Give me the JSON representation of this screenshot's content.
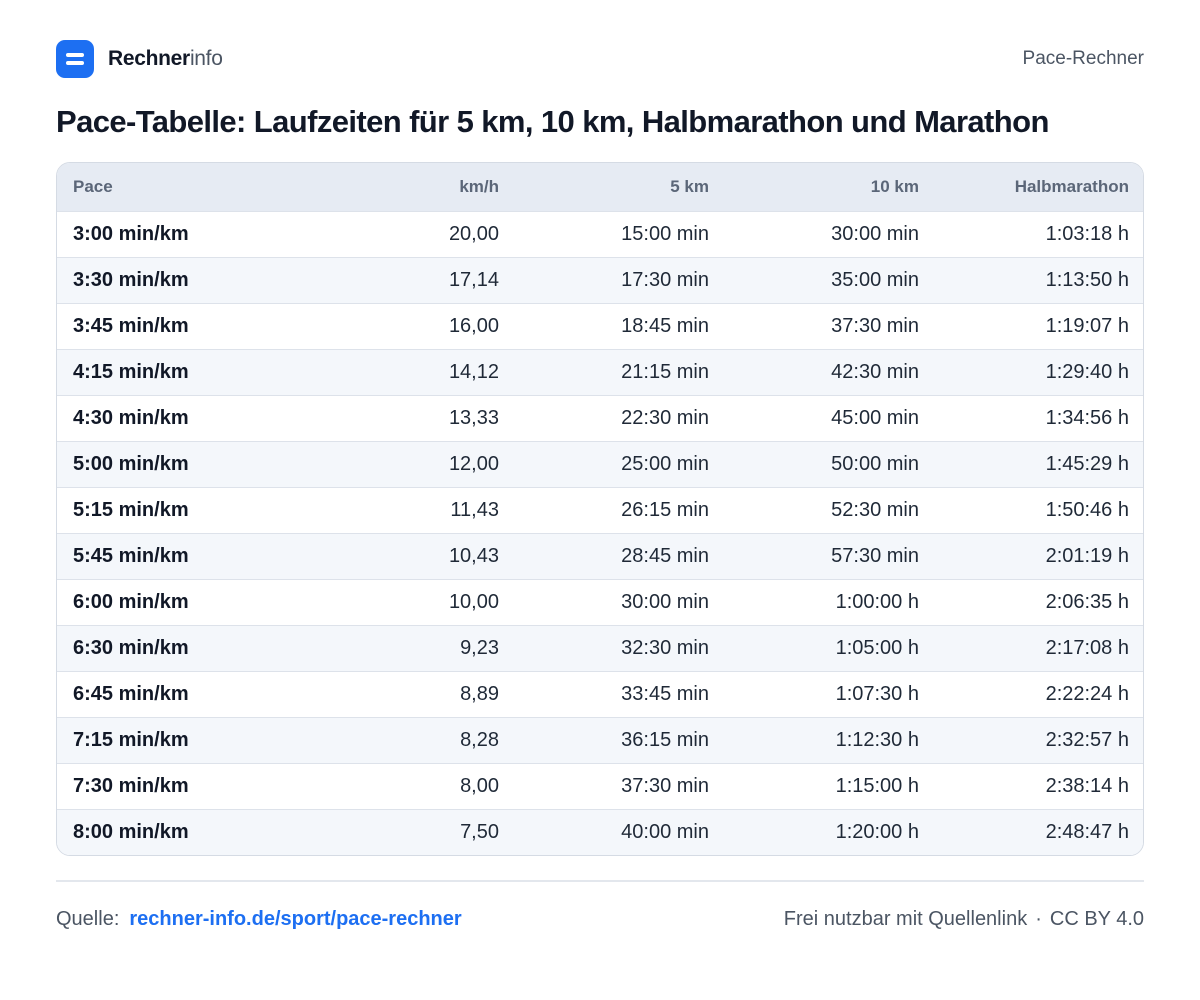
{
  "brand": {
    "name_strong": "Rechner",
    "name_light": "info"
  },
  "header": {
    "right": "Pace-Rechner"
  },
  "title": "Pace-Tabelle:  Laufzeiten für 5 km, 10 km, Halbmarathon und Marathon",
  "chart_data": {
    "type": "table",
    "columns": [
      "Pace",
      "km/h",
      "5 km",
      "10 km",
      "Halbmarathon"
    ],
    "rows": [
      [
        "3:00 min/km",
        "20,00",
        "15:00 min",
        "30:00 min",
        "1:03:18 h"
      ],
      [
        "3:30 min/km",
        "17,14",
        "17:30 min",
        "35:00 min",
        "1:13:50 h"
      ],
      [
        "3:45 min/km",
        "16,00",
        "18:45 min",
        "37:30 min",
        "1:19:07 h"
      ],
      [
        "4:15 min/km",
        "14,12",
        "21:15 min",
        "42:30 min",
        "1:29:40 h"
      ],
      [
        "4:30 min/km",
        "13,33",
        "22:30 min",
        "45:00 min",
        "1:34:56 h"
      ],
      [
        "5:00 min/km",
        "12,00",
        "25:00 min",
        "50:00 min",
        "1:45:29 h"
      ],
      [
        "5:15 min/km",
        "11,43",
        "26:15 min",
        "52:30 min",
        "1:50:46 h"
      ],
      [
        "5:45 min/km",
        "10,43",
        "28:45 min",
        "57:30 min",
        "2:01:19 h"
      ],
      [
        "6:00 min/km",
        "10,00",
        "30:00 min",
        "1:00:00 h",
        "2:06:35 h"
      ],
      [
        "6:30 min/km",
        "9,23",
        "32:30 min",
        "1:05:00 h",
        "2:17:08 h"
      ],
      [
        "6:45 min/km",
        "8,89",
        "33:45 min",
        "1:07:30 h",
        "2:22:24 h"
      ],
      [
        "7:15 min/km",
        "8,28",
        "36:15 min",
        "1:12:30 h",
        "2:32:57 h"
      ],
      [
        "7:30 min/km",
        "8,00",
        "37:30 min",
        "1:15:00 h",
        "2:38:14 h"
      ],
      [
        "8:00 min/km",
        "7,50",
        "40:00 min",
        "1:20:00 h",
        "2:48:47 h"
      ]
    ]
  },
  "footer": {
    "source_label": "Quelle:",
    "source_link": "rechner-info.de/sport/pace-rechner",
    "license_text": "Frei nutzbar mit Quellenlink",
    "separator": "·",
    "license": "CC BY 4.0"
  },
  "colors": {
    "accent": "#1d6ff2",
    "header_bg": "#e6ebf3",
    "stripe": "#f4f7fb",
    "text": "#111827"
  }
}
